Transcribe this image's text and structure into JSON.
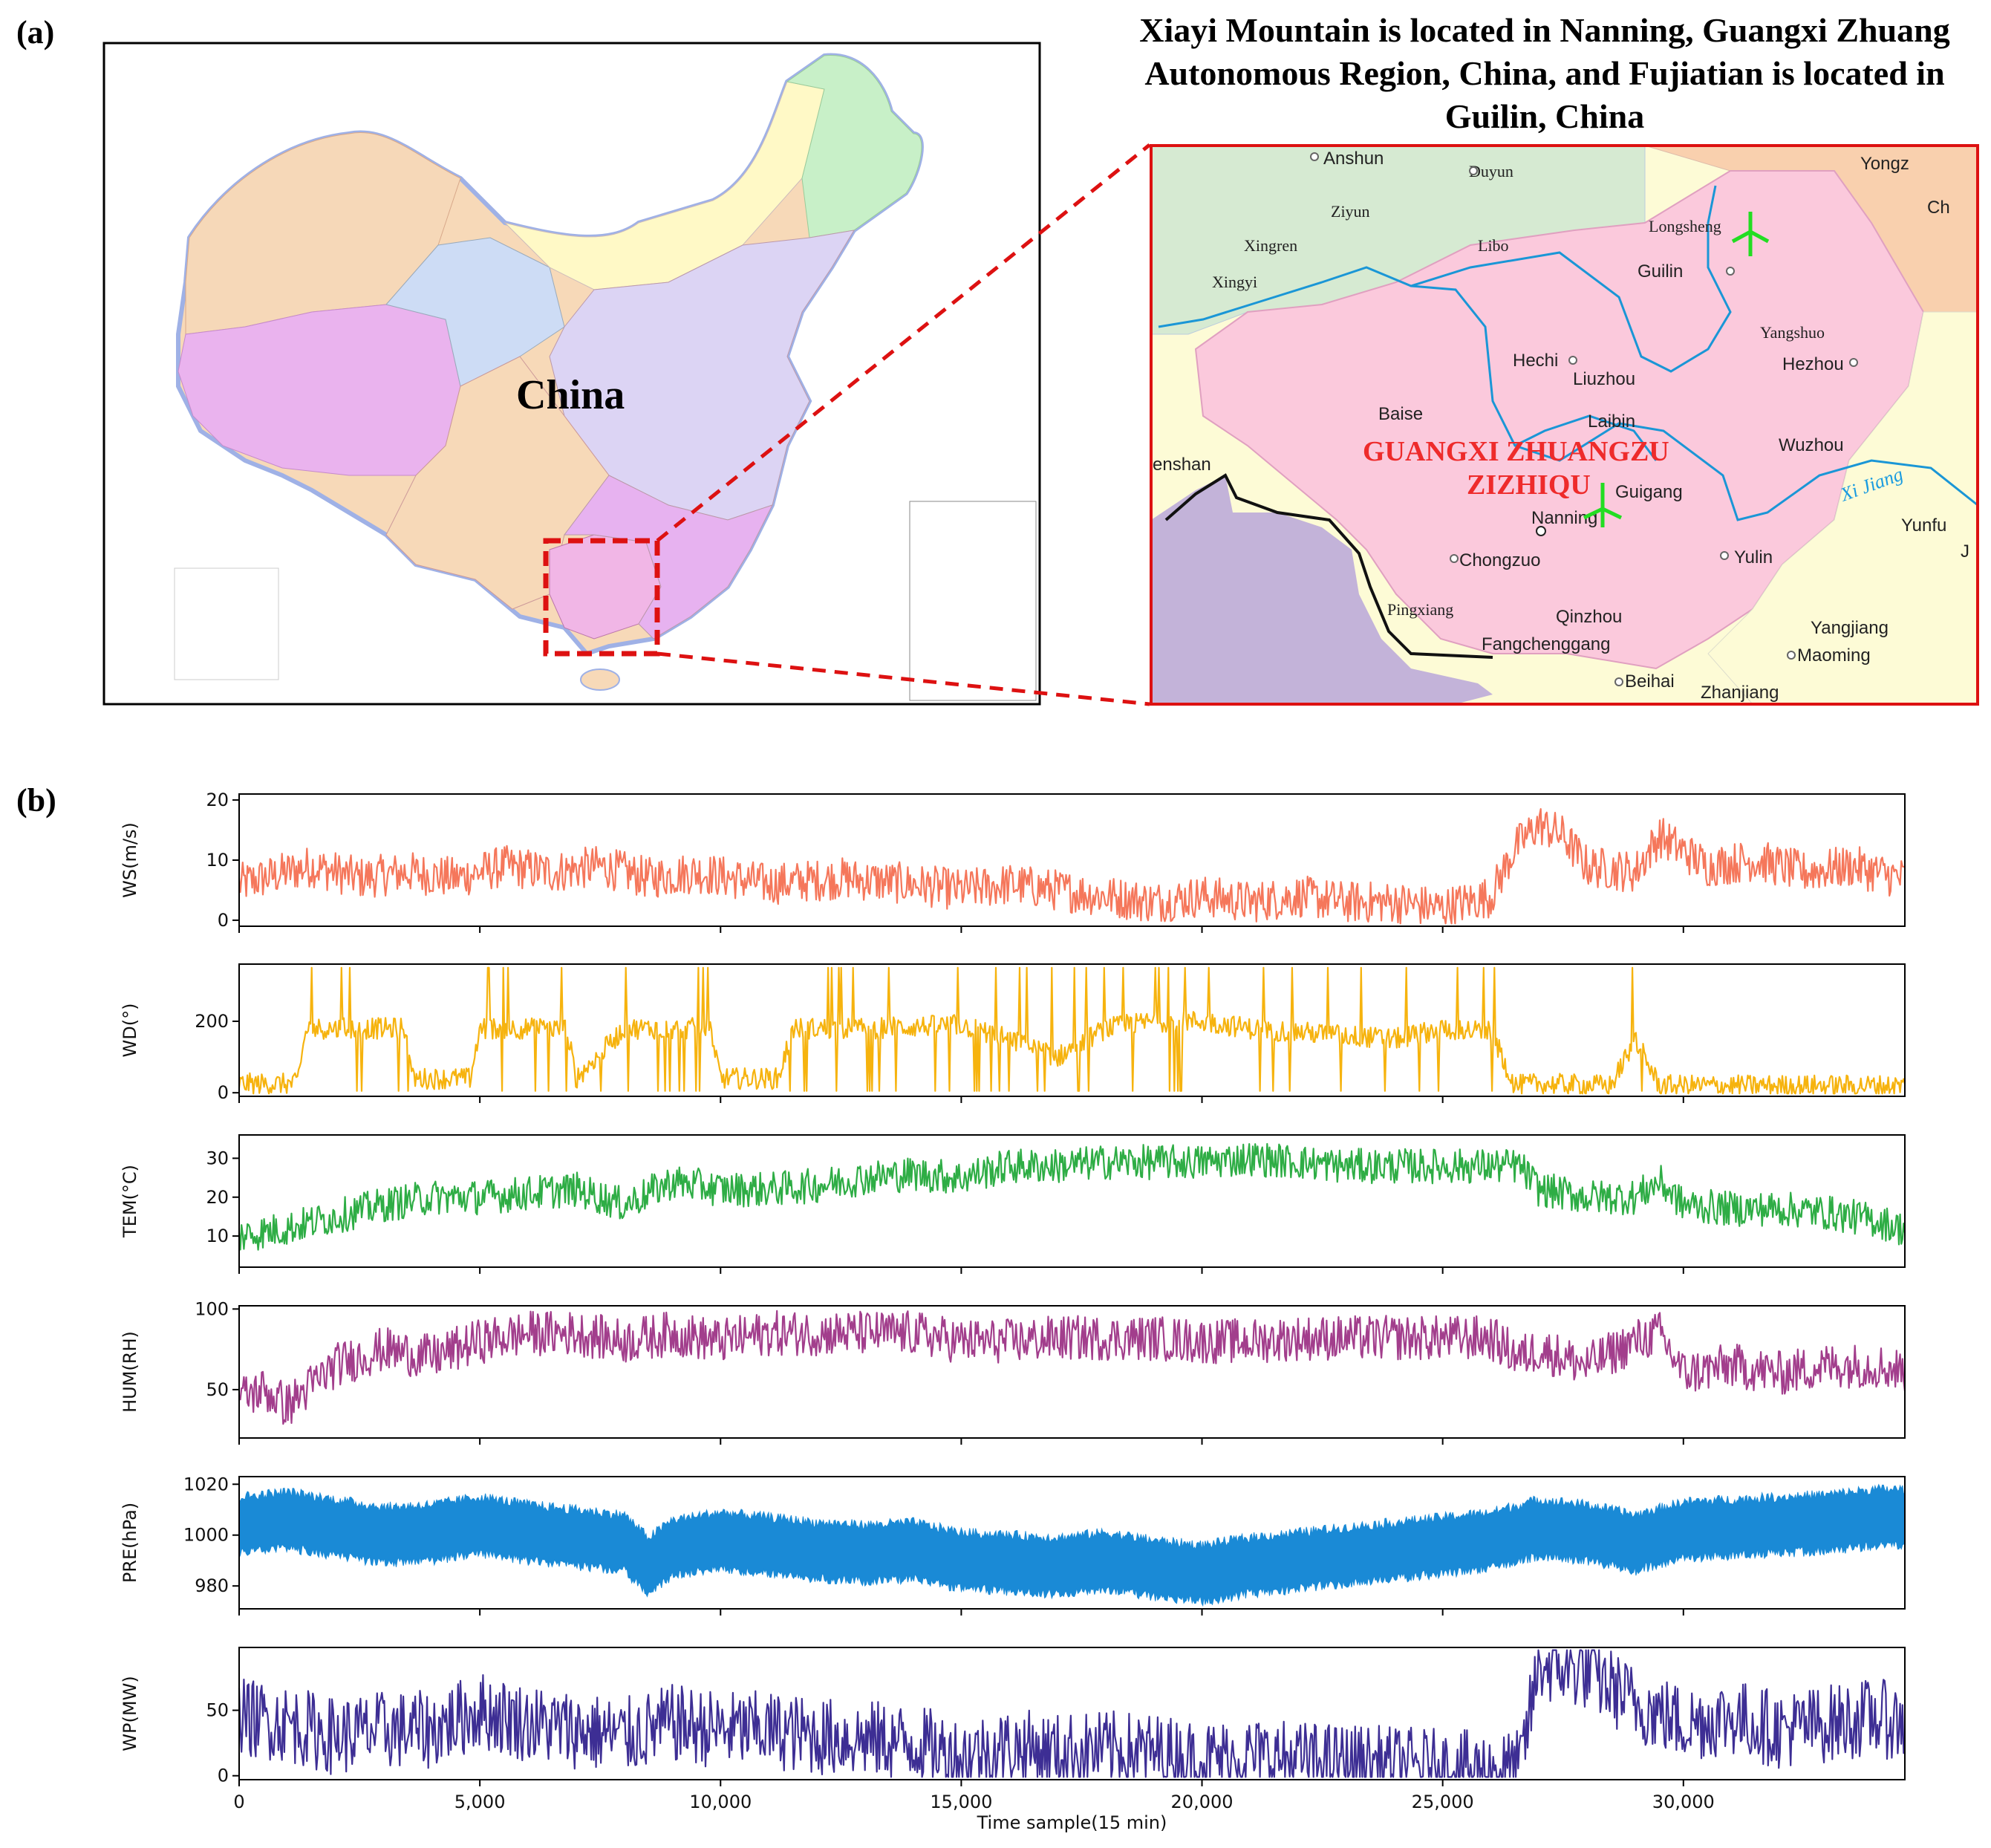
{
  "panel_labels": {
    "a": "(a)",
    "b": "(b)"
  },
  "caption": "Xiayi Mountain is located in Nanning, Guangxi Zhuang Autonomous Region, China, and Fujiatian is located in Guilin, China",
  "map_overview": {
    "country_label": "China",
    "colors": {
      "frame": "#000000",
      "highlight_box": "#dd1111",
      "guangxi": "#f1b6e6",
      "ocean": "#ffffff"
    }
  },
  "map_inset": {
    "region_label_line1": "GUANGXI ZHUANGZU",
    "region_label_line2": "ZIZHIQU",
    "river_label": "Xi Jiang",
    "cities_sans": [
      "Anshun",
      "Yongz",
      "Ch",
      "Guilin",
      "Hechi",
      "Liuzhou",
      "Hezhou",
      "Baise",
      "Laibin",
      "Wuzhou",
      "Guigang",
      "Nanning",
      "Yunfu",
      "J",
      "Chongzuo",
      "Yulin",
      "Qinzhou",
      "Fangchenggang",
      "Yangjiang",
      "Maoming",
      "Beihai",
      "Zhanjiang",
      "enshan"
    ],
    "cities_serif": [
      "Duyun",
      "Ziyun",
      "Xingren",
      "Libo",
      "Xingyi",
      "Longsheng",
      "Yangshuo",
      "Pingxiang"
    ],
    "icons": [
      "wind-turbine-icon",
      "wind-turbine-icon"
    ],
    "colors": {
      "frame": "#dd1111",
      "guangxi": "#fbc9dc",
      "guizhou": "#d6ead2",
      "hunan": "#f9d0ae",
      "yunnan": "#fdfbd6",
      "guangdong": "#fdfbd6",
      "river": "#1a96d6",
      "border": "#111111",
      "turbine": "#22dd22"
    }
  },
  "chart_data": [
    {
      "type": "line",
      "ylabel": "WS(m/s)",
      "yticks": [
        0,
        10,
        20
      ],
      "ylim": [
        -1,
        21
      ],
      "color": "#f5775b",
      "series": [
        {
          "x": [
            0,
            1000,
            1500,
            2500,
            3500,
            4500,
            5500,
            6500,
            7500,
            8500,
            9500,
            11000,
            12500,
            14000,
            15000,
            16000,
            17000,
            18000,
            19000,
            20000,
            21000,
            22000,
            23000,
            24000,
            25000,
            26000,
            26500,
            27000,
            27500,
            28000,
            29000,
            29500,
            30500,
            31500,
            32500,
            33500,
            34500
          ],
          "y": [
            6,
            8,
            9,
            7,
            8,
            7,
            9,
            8,
            9,
            7,
            8,
            6,
            7,
            6,
            5,
            6,
            5,
            4,
            3,
            4,
            3,
            4,
            3,
            3,
            2,
            4,
            12,
            16,
            14,
            9,
            8,
            14,
            9,
            10,
            8,
            9,
            7
          ]
        }
      ]
    },
    {
      "type": "line",
      "ylabel": "WD(°)",
      "yticks": [
        0,
        200
      ],
      "ylim": [
        -10,
        360
      ],
      "color": "#f6b30e",
      "series": [
        {
          "x": [
            0,
            1200,
            1400,
            3500,
            3600,
            4800,
            5000,
            6800,
            7000,
            8000,
            9800,
            10000,
            11200,
            11500,
            13000,
            15000,
            16000,
            17000,
            18000,
            19000,
            20000,
            21000,
            22000,
            23000,
            24000,
            25000,
            26000,
            26500,
            27000,
            28500,
            29000,
            29500,
            31000,
            33000,
            34500
          ],
          "y": [
            25,
            25,
            180,
            180,
            40,
            40,
            180,
            180,
            40,
            180,
            180,
            40,
            40,
            180,
            180,
            190,
            150,
            100,
            180,
            200,
            200,
            180,
            170,
            160,
            150,
            180,
            170,
            20,
            25,
            20,
            150,
            20,
            20,
            20,
            20
          ]
        }
      ]
    },
    {
      "type": "line",
      "ylabel": "TEM(°C)",
      "yticks": [
        10,
        20,
        30
      ],
      "ylim": [
        2,
        36
      ],
      "color": "#2ead45",
      "series": [
        {
          "x": [
            0,
            1000,
            2000,
            3000,
            4000,
            5000,
            6000,
            7000,
            8000,
            9000,
            10000,
            11000,
            12000,
            13000,
            14000,
            15000,
            16000,
            17000,
            18000,
            19000,
            20000,
            21000,
            22000,
            23000,
            24000,
            25000,
            26000,
            26600,
            27000,
            28000,
            29000,
            29500,
            30000,
            31000,
            32000,
            33000,
            34000,
            34500
          ],
          "y": [
            10,
            12,
            15,
            18,
            20,
            20,
            21,
            22,
            18,
            24,
            22,
            22,
            23,
            25,
            26,
            25,
            28,
            28,
            29,
            29,
            29,
            30,
            29,
            28,
            28,
            28,
            28,
            28,
            22,
            20,
            20,
            24,
            18,
            17,
            17,
            16,
            14,
            12
          ]
        }
      ]
    },
    {
      "type": "line",
      "ylabel": "HUM(RH)",
      "yticks": [
        50,
        100
      ],
      "ylim": [
        20,
        102
      ],
      "color": "#a23e8c",
      "series": [
        {
          "x": [
            0,
            500,
            1000,
            2000,
            3000,
            4000,
            5000,
            6000,
            7000,
            8000,
            9000,
            10000,
            11000,
            12000,
            13000,
            14000,
            15000,
            16000,
            17000,
            18000,
            19000,
            20000,
            21000,
            22000,
            23000,
            24000,
            25000,
            26000,
            26600,
            27000,
            28000,
            29000,
            29500,
            30000,
            31000,
            32000,
            33000,
            34000,
            34500
          ],
          "y": [
            45,
            50,
            40,
            65,
            75,
            70,
            80,
            85,
            85,
            80,
            85,
            80,
            85,
            85,
            85,
            85,
            80,
            80,
            82,
            82,
            82,
            80,
            80,
            82,
            82,
            82,
            82,
            82,
            70,
            75,
            65,
            80,
            85,
            60,
            65,
            60,
            65,
            65,
            62
          ]
        }
      ]
    },
    {
      "type": "area",
      "ylabel": "PRE(hPa)",
      "yticks": [
        980,
        1000,
        1020
      ],
      "ylim": [
        971,
        1023
      ],
      "color": "#1a8ad6",
      "series": [
        {
          "x": [
            0,
            1000,
            2000,
            3000,
            4000,
            5000,
            6000,
            7000,
            8000,
            8500,
            9000,
            10000,
            11000,
            12000,
            13000,
            14000,
            15000,
            16000,
            17000,
            18000,
            19000,
            20000,
            21000,
            22000,
            23000,
            24000,
            25000,
            26000,
            27000,
            28000,
            29000,
            30000,
            31000,
            32000,
            33000,
            34000,
            34500
          ],
          "y": [
            1004,
            1006,
            1003,
            1000,
            1001,
            1004,
            1001,
            999,
            997,
            988,
            995,
            998,
            996,
            994,
            993,
            994,
            990,
            989,
            988,
            990,
            987,
            985,
            988,
            990,
            992,
            994,
            996,
            998,
            1003,
            1001,
            997,
            1002,
            1003,
            1004,
            1005,
            1007,
            1007
          ]
        }
      ]
    },
    {
      "type": "line",
      "ylabel": "WP(MW)",
      "yticks": [
        0,
        50
      ],
      "ylim": [
        -3,
        98
      ],
      "color": "#3d2e94",
      "series": [
        {
          "x": [
            0,
            1000,
            2000,
            3000,
            4000,
            5000,
            6000,
            7000,
            8000,
            9000,
            10000,
            11000,
            12000,
            13000,
            14000,
            15000,
            16000,
            17000,
            18000,
            19000,
            20000,
            21000,
            22000,
            23000,
            24000,
            25000,
            26000,
            26600,
            27000,
            28000,
            29000,
            30000,
            31000,
            32000,
            33000,
            34000,
            34500
          ],
          "y": [
            45,
            40,
            30,
            35,
            35,
            50,
            40,
            35,
            30,
            40,
            35,
            35,
            30,
            28,
            25,
            15,
            22,
            18,
            20,
            18,
            12,
            15,
            12,
            10,
            8,
            6,
            4,
            5,
            85,
            80,
            55,
            40,
            45,
            35,
            40,
            45,
            40
          ]
        }
      ]
    }
  ],
  "x_axis": {
    "label": "Time sample(15 min)",
    "ticks": [
      "0",
      "5,000",
      "10,000",
      "15,000",
      "20,000",
      "25,000",
      "30,000"
    ],
    "range": [
      0,
      34600
    ]
  }
}
